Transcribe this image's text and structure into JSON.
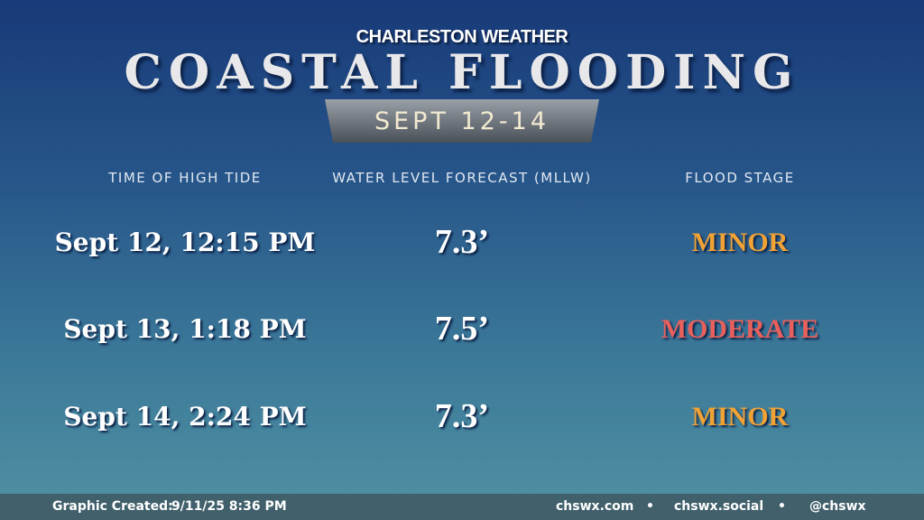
{
  "header": {
    "kicker": "CHARLESTON WEATHER",
    "title": "COASTAL FLOODING",
    "dates": "SEPT 12-14"
  },
  "table": {
    "columns": [
      "TIME OF HIGH TIDE",
      "WATER LEVEL FORECAST (MLLW)",
      "FLOOD STAGE"
    ],
    "rows": [
      [
        "Sept 12, 12:15 PM",
        "7.3’",
        "MINOR"
      ],
      [
        "Sept 13, 1:18 PM",
        "7.5’",
        "MODERATE"
      ],
      [
        "Sept 14, 2:24 PM",
        "7.3’",
        "MINOR"
      ]
    ]
  },
  "footer": {
    "created_label": "Graphic Created:",
    "created": "9/11/25 8:36 PM",
    "links": [
      "chswx.com",
      "chswx.social",
      "@chswx"
    ]
  }
}
